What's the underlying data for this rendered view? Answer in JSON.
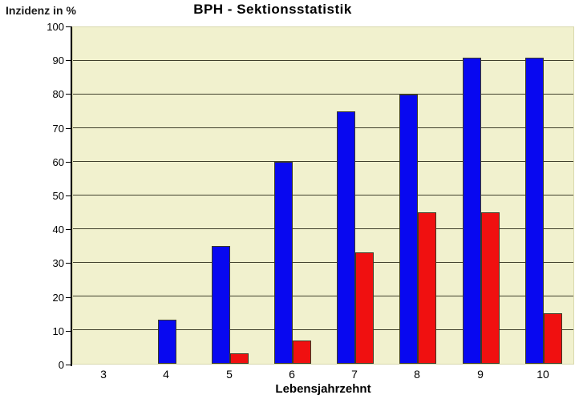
{
  "chart_data": {
    "type": "bar",
    "title": "BPH - Sektionsstatistik",
    "ylabel": "Inzidenz in %",
    "xlabel": "Lebensjahrzehnt",
    "categories": [
      "3",
      "4",
      "5",
      "6",
      "7",
      "8",
      "9",
      "10"
    ],
    "series": [
      {
        "name": "blue-series",
        "color": "#0808f0",
        "values": [
          0,
          13,
          35,
          60,
          75,
          80,
          91,
          91
        ]
      },
      {
        "name": "red-series",
        "color": "#f01010",
        "values": [
          0,
          0,
          3,
          7,
          33,
          45,
          45,
          15
        ]
      }
    ],
    "ylim": [
      0,
      100
    ],
    "ytick_step": 10,
    "grid": true,
    "legend": "none",
    "plot_bg": "#f1f1ce",
    "grid_color": "#40402c",
    "axis_color": "#000000"
  }
}
